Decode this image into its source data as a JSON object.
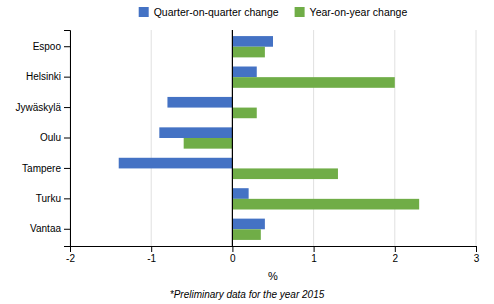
{
  "chart_data": {
    "type": "bar",
    "orientation": "horizontal",
    "categories": [
      "Espoo",
      "Helsinki",
      "Jywäskylä",
      "Oulu",
      "Tampere",
      "Turku",
      "Vantaa"
    ],
    "series": [
      {
        "name": "Quarter-on-quarter change",
        "color": "#4472C4",
        "values": [
          0.5,
          0.3,
          -0.8,
          -0.9,
          -1.4,
          0.2,
          0.4
        ]
      },
      {
        "name": "Year-on-year change",
        "color": "#70AD47",
        "values": [
          0.4,
          2.0,
          0.3,
          -0.6,
          1.3,
          2.3,
          0.35
        ]
      }
    ],
    "xlabel": "%",
    "xlim": [
      -2,
      3
    ],
    "xticks": [
      -2,
      -1,
      0,
      1,
      2,
      3
    ],
    "grid": true,
    "legend": "top",
    "footnote": "*Preliminary data for the year 2015"
  }
}
